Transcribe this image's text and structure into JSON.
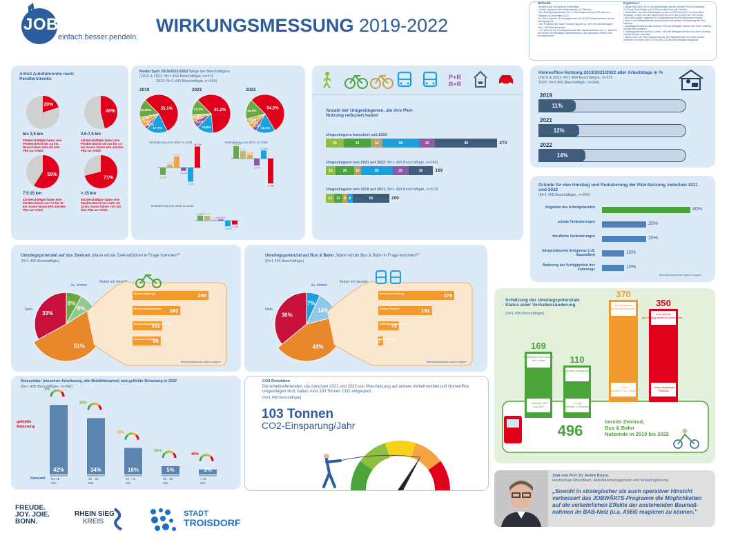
{
  "header": {
    "logo_name": "JOBWÄRTS",
    "logo_tagline": "einfach.besser.pendeln.",
    "title_bold": "WIRKUNGSMESSUNG",
    "title_years": "2019-2022"
  },
  "notes": {
    "methodik_title": "Methodik:",
    "methodik": "• Ausführung: Hochschule RheinMain,\n• Grafik: Agentur-Fixer-Markenarbeit, (& Pittmen)\n• Der Befragungszeitraum der 2. Wirkungsmessung 2022 war von Oktober bis Dezember 2022\n• In 2022 nahmen 20 Arbeitgebende mit 42.030 Mitarbeitenden an der Befragung teil.\n• Der Rücklauf der Stadt Troisdorf lag bei ca. 16% mit 266 Befragten von 1.495 Mitarbeitenden.\n• „N\" steht für die Grundgesamtheit aller Mitarbeitenden und „n\" steht für die Anzahl der Befragten Mitarbeitenden. Alle absoluten Werte ohne hochgerechnet.",
    "ergebnisse_title": "Ergebnisse:",
    "ergebnisse": "• Modal Split 2022: 54,0% der Arbeitswege wurden mit dem Pkw zurückgelegt, 16,1% per Bus & Bahn und 20,5% mit dem Rad oder Pedelec.\n• Homeoffice: von allen Arbeitstagen wurden in 2019 etwa 11% im Homeoffice verbracht. In 2021 hat sich dieser Anteil auf 12% und in 2022 auf 14% erhöht.\n• 568 (26%) haben insgesamt 270 Mitarbeitende ihre Pkw-Nutzung reduziert.\n• Etwa 1 von 5 Mitarbeitende planen bereits eine weitere Reduzierung der Pkw-Nutzung.\n• Umstiegspotenzial auf das Zweirad: 51% der Befragten können sich einen Umstieg auf das Rad vorstellen.\n• Umstiegspotenzial auf Bus & Bahn: 43% der Befragten können sich einen Umstieg auf Bus & Bahn vorstellen.\n• Alleine durch die Pkw-Reduzierung der 169 Mitarbeitenden seit 2021 wurden innerhalb von einem Jahr 103 Tonnen CO2 auf Arbeitswegen eingespart."
  },
  "autofahrende": {
    "title": "Anteil Autofahrende nach Pendlerstrecke",
    "items": [
      {
        "pct": 20,
        "label": "20%",
        "range": "bis 2,5 km",
        "desc": "208 Beschäftigte haben eine Pendlerstrecke bis 2,5 km. Davon fahren 20% mit dem Pkw zur Arbeit."
      },
      {
        "pct": 46,
        "label": "46%",
        "range": "2,5-7,5 km",
        "desc": "416 Beschäftigte haben eine Pendlerstrecke von 2,5 bis 7,5 km. Davon fahren 46% mit dem Pkw zur Arbeit."
      },
      {
        "pct": 59,
        "label": "59%",
        "range": "7,5-15 km",
        "desc": "320 Beschäftigte haben eine Pendlerstrecke von 7,5 bis 15 km. Davon fahren 59% mit dem Pkw zur Arbeit."
      },
      {
        "pct": 71,
        "label": "71%",
        "range": "> 15 km",
        "desc": "551 Beschäftigte haben eine Pendlerstrecke von mehr als 15 km. Davon fahren 71% mit dem Pkw zur Arbeit."
      }
    ]
  },
  "modal_split": {
    "title_bold": "Modal Split 2019/2021/2022",
    "title_rest": " Wege der Beschäftigten",
    "sub1": "(2019 & 2021: N=1.454 Beschäftigte, n=319",
    "sub2": "2022: N=1.495 Beschäftigte, n=266)",
    "years": [
      {
        "year": "2019",
        "values": [
          55.1,
          17.7,
          2.85,
          6.2,
          2.6,
          15.45
        ],
        "labels": [
          "55,1%",
          "17,7%",
          "2,85%",
          "6,2%",
          "2,6%",
          "15,45%"
        ]
      },
      {
        "year": "2021",
        "values": [
          61.2,
          13.8,
          6.1,
          3.85,
          1.8,
          13.3
        ],
        "labels": [
          "61,2%",
          "13,8%",
          "6,1%",
          "3,85%",
          "1,8%",
          "13,3%"
        ]
      },
      {
        "year": "2022",
        "values": [
          54.0,
          16.1,
          4.1,
          5.0,
          4.0,
          16.9
        ],
        "labels": [
          "54,0%",
          "16,1%",
          "4,1%",
          "5,0%",
          "4,0%",
          "16,9%"
        ]
      }
    ],
    "colors": [
      "#e0001b",
      "#1aa0dc",
      "#8f5aa5",
      "#f3a341",
      "#c9b56a",
      "#6aa843"
    ],
    "change1_title": "Veränderung von 2019 zu 2021",
    "change1": [
      "+6,1%",
      "-4,1%",
      "-0,95%",
      "+3,25%",
      "+0,85%",
      "-2,15%"
    ],
    "change2_title": "Veränderung von 2021 zu 2022",
    "change2": [
      "-7,2%",
      "+2,35%",
      "-2,0%",
      "+1,15%",
      "+2,2%",
      "+3,6%"
    ],
    "change3_title": "Veränderung von 2019 zu 2022",
    "change3": [
      "-1,1%",
      "-1,65%",
      "+0,35%",
      "+0,25%",
      "+1,4%",
      "+1,45%"
    ]
  },
  "umgestiegene": {
    "icons": [
      "walk-icon",
      "bike-icon",
      "pedelec-icon",
      "bus-icon",
      "train-icon",
      "park-ride-icon",
      "homeoffice-icon",
      "car-icon"
    ],
    "pr1": "P+R",
    "pr2": "B+R",
    "title": "Anzahl der Umgestiegenen, die ihre Pkw-Nutzung reduziert haben",
    "kum_title": "Umgestiegene kumuliert seit 2019",
    "kum_values": [
      28,
      43,
      18,
      58,
      25,
      98
    ],
    "kum_total": "270",
    "y2122_title": "Umgestiegene von 2021 auf 2022",
    "y2122_sub": "(N=1.495 Beschäftigte, n=266)",
    "y2122_values": [
      15,
      30,
      10,
      50,
      25,
      39
    ],
    "y2122_total": "169",
    "y1921_title": "Umgestiegene von 2019 auf 2021",
    "y1921_sub": "(N=1.454 Beschäftigte, n=319)",
    "y1921_values": [
      13,
      13,
      8,
      8,
      58
    ],
    "y1921_total": "100",
    "colors": [
      "#8cbf3f",
      "#4aa43a",
      "#b5a16a",
      "#1aa0dc",
      "#8f5aa5",
      "#3f5c7a"
    ]
  },
  "homeoffice": {
    "title": "Homeoffice-Nutzung 2019/2021/2022 aller Arbeitstage in %",
    "sub1": "(2019 & 2021: N=1.454 Beschäftigte, n=319",
    "sub2": "2022: N=1.495 Beschäftigte, n=266)",
    "rows": [
      {
        "year": "2019",
        "pct": 11,
        "label": "11%"
      },
      {
        "year": "2021",
        "pct": 12,
        "label": "12%"
      },
      {
        "year": "2022",
        "pct": 14,
        "label": "14%"
      }
    ]
  },
  "gruende": {
    "title": "Gründe für den Umstieg und Reduzierung der Pkw-Nutzung zwischen 2021 und 2022",
    "sub": "(N=1.495 Beschäftigte, n=266)",
    "rows": [
      {
        "label": "Angebote des Arbeitgebenden",
        "pct": 40,
        "text": "40%"
      },
      {
        "label": "private Veränderungen",
        "pct": 20,
        "text": "20%"
      },
      {
        "label": "berufliche Veränderungen",
        "pct": 20,
        "text": "20%"
      },
      {
        "label": "Infrastrukturelle Ereignisse (z.B. Baustellen)",
        "pct": 10,
        "text": "10%"
      },
      {
        "label": "Änderung der Verfügbarkeit des Fahrzeugs",
        "pct": 10,
        "text": "10%"
      }
    ],
    "note": "Mehrfachantworten waren möglich"
  },
  "zweirad": {
    "title_bold": "Umstiegspotenzial auf das Zweirad",
    "title_rest": " „Wann würde Zweiradfahren in Frage kommen?\"",
    "sub": "(N=1.495 Beschäftigte)",
    "slices": [
      {
        "label": "Ja, immer",
        "pct": 8,
        "text": "8%"
      },
      {
        "label": "Nutze ich bereits",
        "pct": 8,
        "text": "8%"
      },
      {
        "label": "Ja, unter bestimmten Voraussetzungen",
        "pct": 51,
        "text": "51%"
      },
      {
        "label": "Nein",
        "pct": 33,
        "text": "33%"
      }
    ],
    "bars": [
      {
        "label": "Bessere Radwege",
        "value": 259
      },
      {
        "label": "Bessere Abstellanlagen",
        "value": 163
      },
      {
        "label": "Bessere Radmitnahme im ÖPNV",
        "value": 101
      },
      {
        "label": "Duschen/ Umkleiden",
        "value": 96
      }
    ],
    "note": "Mehrfachantworten waren möglich"
  },
  "busbahn": {
    "title_bold": "Umstiegspotenzial auf Bus & Bahn",
    "title_rest": " „Wann würde Bus & Bahn in Frage kommen?\"",
    "sub": "(N=1.495 Beschäftigte)",
    "slices": [
      {
        "label": "Ja, immer",
        "pct": 7,
        "text": "7%"
      },
      {
        "label": "Nutze ich bereits",
        "pct": 14,
        "text": "14%"
      },
      {
        "label": "Ja, unter bestimmten Voraussetzungen",
        "pct": 43,
        "text": "43%"
      },
      {
        "label": "Nein",
        "pct": 36,
        "text": "36%"
      }
    ],
    "bars": [
      {
        "label": "Bessere Verbindung",
        "value": 270
      },
      {
        "label": "Kürzere Fahrzeit",
        "value": 191
      },
      {
        "label": "Günstigere Fahrpreise",
        "value": 73
      },
      {
        "label": "Mehr Komfort",
        "value": 17
      }
    ],
    "note": "Mehrfachantworten waren möglich"
  },
  "schaetzung": {
    "title": "Schätzung der Umstiegspotenziale Status einer Verhaltensänderung",
    "sub": "(N=1.495 Beschäftigte)",
    "cols": [
      {
        "value": "169",
        "top": "Umgestiegene auf Zweirad, Bus & Bahn",
        "bottom": "... zwischen 2021 und 2022"
      },
      {
        "value": "110",
        "top": "potenzielle Umsteigende ...",
        "bottom": "... in den nächsten 12 Monaten"
      },
      {
        "value": "370",
        "top": "für das Umstieg aktivierte Autofahrende ...",
        "bottom": "... in den nächsten 1 bis 2 Jahren"
      },
      {
        "value": "350",
        "top": "noch nicht für den Umstieg aktivierte Autofahrende ...",
        "bottom": "... bilden langfristiges Potenzial"
      }
    ],
    "total": "496",
    "total_text": "bereits Zweirad, Bus & Bahn Nutzende in 2019 bis 2022"
  },
  "reisezeiten": {
    "title": "Reisezeiten (einzelner Arbeitsweg, alle Mobilitätsarten) und gefühlte Belastung in 2022",
    "sub": "(N=1.495 Beschäftigte, n=266)",
    "belastung_label": "gefühlte Belastung",
    "reisezeit_label": "Reisezeit",
    "bars": [
      {
        "pct": 42,
        "text": "42%",
        "label": "bis 15 Min.",
        "load": "1%"
      },
      {
        "pct": 34,
        "text": "34%",
        "label": "15 - 30 Min.",
        "load": "20%"
      },
      {
        "pct": 16,
        "text": "16%",
        "label": "30 - 45 Min.",
        "load": "32%"
      },
      {
        "pct": 5,
        "text": "5%",
        "label": "45 - 60 Min.",
        "load": "20%"
      },
      {
        "pct": 3,
        "text": "3%",
        "label": "> 60 Min.",
        "load": "40%"
      }
    ]
  },
  "co2": {
    "title": "CO2-Reduktion",
    "text": "Die Arbeitnehmenden, die zwischen 2021 und 2022 von Pkw-Nutzung auf andere Verkehrsmittel und Homeoffice umgestiegen sind, haben rund 103 Tonnen CO2 eingespart.",
    "sub": "(N=1.495 Beschäftigte)",
    "big": "103 Tonnen",
    "big2": "CO2-Einsparung/Jahr"
  },
  "zitat": {
    "title": "Zitat von Prof. Dr. André Bruns,",
    "role": "Hochschule RheinMain, Mobilitätsmanagement und Verkehrsplanung",
    "quote": "„Sowohl in strategischer als auch operativer Hinsicht verbessert das JOBWÄRTS-Programm die Möglichkeiten auf die verkehrlichen Effekte der anstehenden Baumaß-nahmen im BAB-Netz (u.a. A565) reagieren zu können.\""
  },
  "footer": {
    "logo1": "FREUDE. JOY. JOIE. BONN.",
    "logo2_a": "RHEIN SIEG",
    "logo2_b": "KREIS",
    "logo3_a": "STADT",
    "logo3_b": "TROISDORF"
  }
}
